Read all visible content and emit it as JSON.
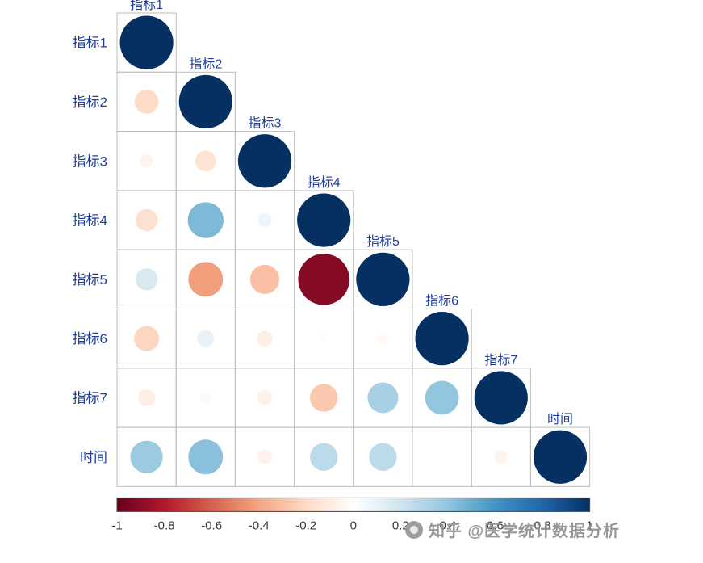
{
  "chart_data": {
    "type": "heatmap",
    "subtype": "lower-triangle-correlation-circle-matrix",
    "variables": [
      "指标1",
      "指标2",
      "指标3",
      "指标4",
      "指标5",
      "指标6",
      "指标7",
      "时间"
    ],
    "matrix_lower_triangle": [
      [
        1.0
      ],
      [
        -0.2,
        1.0
      ],
      [
        -0.06,
        -0.15,
        1.0
      ],
      [
        -0.17,
        0.45,
        0.07,
        1.0
      ],
      [
        0.17,
        -0.42,
        -0.3,
        -0.92,
        1.0
      ],
      [
        -0.22,
        0.1,
        -0.09,
        -0.02,
        -0.04,
        1.0
      ],
      [
        -0.1,
        -0.04,
        -0.08,
        -0.27,
        0.33,
        0.4,
        1.0
      ],
      [
        0.37,
        0.42,
        -0.07,
        0.27,
        0.27,
        0.0,
        -0.06,
        1.0
      ]
    ],
    "colorbar": {
      "min": -1,
      "max": 1,
      "ticks": [
        -1,
        -0.8,
        -0.6,
        -0.4,
        -0.2,
        0,
        0.2,
        0.4,
        0.6,
        0.8,
        1
      ],
      "tick_labels": [
        "-1",
        "-0.8",
        "-0.6",
        "-0.4",
        "-0.2",
        "0",
        "0.2",
        "0.4",
        "0.6",
        "0.8",
        "1"
      ],
      "palette": [
        "#67001f",
        "#b2182b",
        "#d6604d",
        "#f4a582",
        "#fddbc7",
        "#ffffff",
        "#d1e5f0",
        "#92c5de",
        "#4393c3",
        "#2166ac",
        "#053061"
      ]
    },
    "label_color": "#203f9e",
    "grid_color": "#bdbdbd",
    "tick_label_color": "#3a3a3a",
    "legend_position": "bottom"
  },
  "watermark": {
    "text": "知乎 @医学统计数据分析",
    "color": "#8f8f8f"
  }
}
